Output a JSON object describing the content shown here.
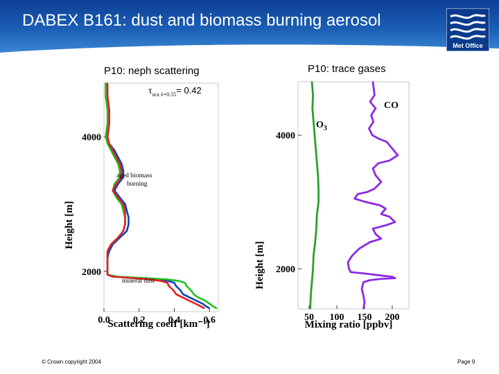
{
  "slide": {
    "title": "DABEX B161: dust and biomass burning aerosol",
    "logo_text": "Met Office",
    "footer_left": "© Crown copyright 2004",
    "footer_right": "Page 9"
  },
  "colors": {
    "header_dark": "#0d3f95",
    "header_light": "#3a86d2",
    "neph_blue": "#1040c0",
    "neph_green": "#20c020",
    "neph_red": "#e02020",
    "o3_green": "#2aa02a",
    "co_purple": "#8a2be2"
  },
  "chart_data": [
    {
      "type": "line",
      "panel_title": "P10: neph scattering",
      "xlabel": "Scattering coeff [km⁻¹]",
      "ylabel": "Height [m]",
      "xlim": [
        0,
        0.65
      ],
      "ylim": [
        1400,
        4800
      ],
      "xticks": [
        "0.0",
        "0.2",
        "0.4",
        "0.6"
      ],
      "yticks": [
        "2000",
        "4000"
      ],
      "xtick_values": [
        0,
        0.2,
        0.4,
        0.6
      ],
      "ytick_values": [
        2000,
        4000
      ],
      "annotations": {
        "tau_symbol": "τ",
        "tau_sub": "sca λ=0.55",
        "tau_value": "= 0.42",
        "biomass_1": "aged biomass",
        "biomass_2": "burning",
        "dust": "mineral dust"
      },
      "series": [
        {
          "color": "#1040c0",
          "points": [
            [
              0.01,
              4800
            ],
            [
              0.02,
              4700
            ],
            [
              0.02,
              4600
            ],
            [
              0.03,
              4400
            ],
            [
              0.03,
              4200
            ],
            [
              0.02,
              4000
            ],
            [
              0.03,
              3900
            ],
            [
              0.06,
              3800
            ],
            [
              0.08,
              3700
            ],
            [
              0.1,
              3600
            ],
            [
              0.11,
              3500
            ],
            [
              0.11,
              3400
            ],
            [
              0.08,
              3300
            ],
            [
              0.06,
              3200
            ],
            [
              0.09,
              3100
            ],
            [
              0.12,
              3000
            ],
            [
              0.13,
              2900
            ],
            [
              0.14,
              2800
            ],
            [
              0.14,
              2700
            ],
            [
              0.13,
              2600
            ],
            [
              0.09,
              2500
            ],
            [
              0.05,
              2400
            ],
            [
              0.03,
              2300
            ],
            [
              0.02,
              2200
            ],
            [
              0.02,
              2100
            ],
            [
              0.02,
              2000
            ],
            [
              0.02,
              1950
            ],
            [
              0.06,
              1920
            ],
            [
              0.2,
              1900
            ],
            [
              0.3,
              1880
            ],
            [
              0.36,
              1860
            ],
            [
              0.4,
              1830
            ],
            [
              0.41,
              1780
            ],
            [
              0.43,
              1730
            ],
            [
              0.44,
              1700
            ],
            [
              0.45,
              1660
            ],
            [
              0.48,
              1620
            ],
            [
              0.52,
              1570
            ],
            [
              0.56,
              1520
            ],
            [
              0.58,
              1480
            ],
            [
              0.6,
              1450
            ]
          ]
        },
        {
          "color": "#20c020",
          "points": [
            [
              0.01,
              4800
            ],
            [
              0.01,
              4700
            ],
            [
              0.01,
              4600
            ],
            [
              0.02,
              4400
            ],
            [
              0.02,
              4200
            ],
            [
              0.01,
              4000
            ],
            [
              0.02,
              3900
            ],
            [
              0.04,
              3800
            ],
            [
              0.06,
              3700
            ],
            [
              0.08,
              3600
            ],
            [
              0.09,
              3500
            ],
            [
              0.09,
              3400
            ],
            [
              0.06,
              3300
            ],
            [
              0.05,
              3200
            ],
            [
              0.07,
              3100
            ],
            [
              0.1,
              3000
            ],
            [
              0.11,
              2900
            ],
            [
              0.12,
              2800
            ],
            [
              0.12,
              2700
            ],
            [
              0.11,
              2600
            ],
            [
              0.08,
              2500
            ],
            [
              0.04,
              2400
            ],
            [
              0.02,
              2300
            ],
            [
              0.02,
              2200
            ],
            [
              0.02,
              2100
            ],
            [
              0.02,
              2000
            ],
            [
              0.02,
              1950
            ],
            [
              0.08,
              1920
            ],
            [
              0.24,
              1900
            ],
            [
              0.36,
              1880
            ],
            [
              0.42,
              1860
            ],
            [
              0.46,
              1830
            ],
            [
              0.47,
              1780
            ],
            [
              0.49,
              1730
            ],
            [
              0.5,
              1700
            ],
            [
              0.51,
              1660
            ],
            [
              0.53,
              1620
            ],
            [
              0.57,
              1570
            ],
            [
              0.6,
              1520
            ],
            [
              0.62,
              1480
            ],
            [
              0.64,
              1450
            ]
          ]
        },
        {
          "color": "#e02020",
          "points": [
            [
              0.02,
              4800
            ],
            [
              0.02,
              4700
            ],
            [
              0.02,
              4600
            ],
            [
              0.03,
              4400
            ],
            [
              0.03,
              4200
            ],
            [
              0.02,
              4000
            ],
            [
              0.03,
              3900
            ],
            [
              0.05,
              3800
            ],
            [
              0.07,
              3700
            ],
            [
              0.09,
              3600
            ],
            [
              0.1,
              3500
            ],
            [
              0.1,
              3400
            ],
            [
              0.07,
              3300
            ],
            [
              0.05,
              3200
            ],
            [
              0.08,
              3100
            ],
            [
              0.11,
              3000
            ],
            [
              0.12,
              2900
            ],
            [
              0.12,
              2800
            ],
            [
              0.12,
              2700
            ],
            [
              0.11,
              2600
            ],
            [
              0.08,
              2500
            ],
            [
              0.04,
              2400
            ],
            [
              0.02,
              2300
            ],
            [
              0.02,
              2200
            ],
            [
              0.02,
              2100
            ],
            [
              0.02,
              2000
            ],
            [
              0.02,
              1950
            ],
            [
              0.05,
              1920
            ],
            [
              0.16,
              1900
            ],
            [
              0.26,
              1880
            ],
            [
              0.32,
              1860
            ],
            [
              0.36,
              1830
            ],
            [
              0.37,
              1780
            ],
            [
              0.39,
              1730
            ],
            [
              0.4,
              1700
            ],
            [
              0.41,
              1660
            ],
            [
              0.44,
              1620
            ],
            [
              0.48,
              1570
            ],
            [
              0.52,
              1520
            ],
            [
              0.55,
              1480
            ],
            [
              0.57,
              1450
            ]
          ]
        }
      ]
    },
    {
      "type": "line",
      "panel_title": "P10: trace gases",
      "xlabel": "Mixing ratio [ppbv]",
      "ylabel": "Height [m]",
      "xlim": [
        30,
        230
      ],
      "ylim": [
        1400,
        4800
      ],
      "xticks": [
        "50",
        "100",
        "150",
        "200"
      ],
      "yticks": [
        "2000",
        "4000"
      ],
      "xtick_values": [
        50,
        100,
        150,
        200
      ],
      "ytick_values": [
        2000,
        4000
      ],
      "series": [
        {
          "name": "O₃",
          "color": "#2aa02a",
          "points": [
            [
              55,
              4800
            ],
            [
              57,
              4600
            ],
            [
              56,
              4400
            ],
            [
              58,
              4200
            ],
            [
              60,
              4000
            ],
            [
              62,
              3800
            ],
            [
              64,
              3600
            ],
            [
              66,
              3400
            ],
            [
              67,
              3200
            ],
            [
              67,
              3000
            ],
            [
              64,
              2800
            ],
            [
              63,
              2600
            ],
            [
              61,
              2400
            ],
            [
              58,
              2200
            ],
            [
              57,
              2000
            ],
            [
              55,
              1800
            ],
            [
              53,
              1600
            ],
            [
              52,
              1400
            ]
          ]
        },
        {
          "name": "CO",
          "color": "#8a2be2",
          "points": [
            [
              165,
              4800
            ],
            [
              168,
              4600
            ],
            [
              160,
              4500
            ],
            [
              170,
              4400
            ],
            [
              162,
              4300
            ],
            [
              166,
              4200
            ],
            [
              158,
              4100
            ],
            [
              164,
              4000
            ],
            [
              175,
              3950
            ],
            [
              190,
              3900
            ],
            [
              200,
              3800
            ],
            [
              210,
              3700
            ],
            [
              195,
              3620
            ],
            [
              175,
              3580
            ],
            [
              165,
              3500
            ],
            [
              170,
              3400
            ],
            [
              180,
              3300
            ],
            [
              168,
              3200
            ],
            [
              155,
              3150
            ],
            [
              138,
              3120
            ],
            [
              132,
              3050
            ],
            [
              152,
              3000
            ],
            [
              178,
              2950
            ],
            [
              188,
              2900
            ],
            [
              180,
              2820
            ],
            [
              195,
              2780
            ],
            [
              205,
              2700
            ],
            [
              188,
              2650
            ],
            [
              165,
              2600
            ],
            [
              170,
              2520
            ],
            [
              180,
              2450
            ],
            [
              160,
              2400
            ],
            [
              140,
              2300
            ],
            [
              128,
              2200
            ],
            [
              120,
              2100
            ],
            [
              122,
              2000
            ],
            [
              125,
              1950
            ],
            [
              150,
              1930
            ],
            [
              180,
              1900
            ],
            [
              200,
              1880
            ],
            [
              205,
              1860
            ],
            [
              180,
              1850
            ],
            [
              160,
              1830
            ],
            [
              148,
              1800
            ],
            [
              145,
              1700
            ],
            [
              148,
              1600
            ],
            [
              150,
              1500
            ],
            [
              148,
              1400
            ]
          ]
        }
      ]
    }
  ]
}
